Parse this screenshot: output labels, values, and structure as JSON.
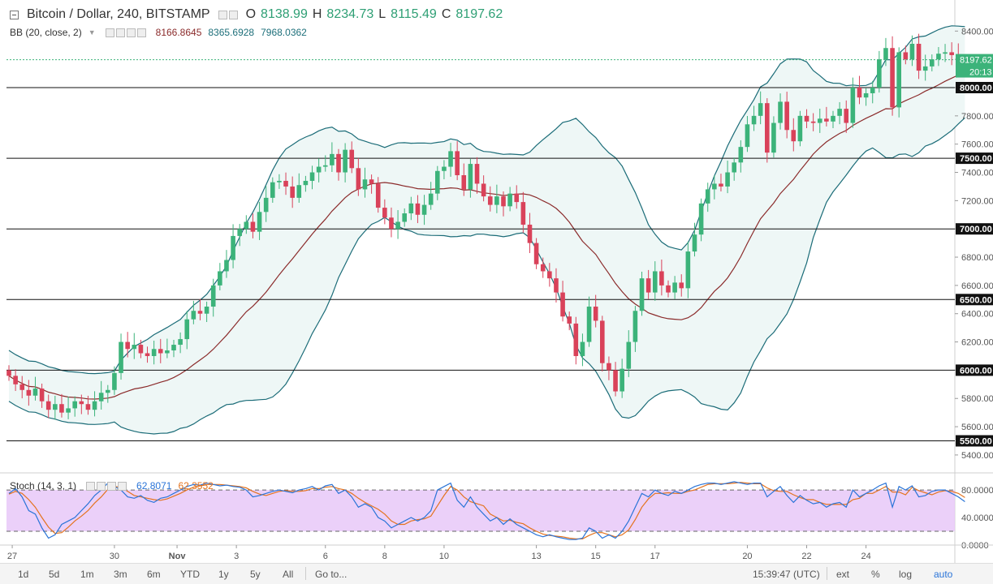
{
  "header": {
    "symbol": "Bitcoin / Dollar, 240, BITSTAMP",
    "open_label": "O",
    "open": "8138.99",
    "high_label": "H",
    "high": "8234.73",
    "low_label": "L",
    "low": "8115.49",
    "close_label": "C",
    "close": "8197.62"
  },
  "bb": {
    "label": "BB (20, close, 2)",
    "basis": "8166.8645",
    "upper": "8365.6928",
    "lower": "7968.0362"
  },
  "stoch": {
    "label": "Stoch (14, 3, 1)",
    "k": "62.8071",
    "d": "62.3552"
  },
  "price_label": {
    "value": "8197.62",
    "countdown": "20:13"
  },
  "bottom": {
    "ranges": [
      "1d",
      "5d",
      "1m",
      "3m",
      "6m",
      "YTD",
      "1y",
      "5y",
      "All"
    ],
    "goto": "Go to...",
    "time": "15:39:47 (UTC)",
    "ext": "ext",
    "pct": "%",
    "log": "log",
    "auto": "auto"
  },
  "colors": {
    "up": "#3cb37a",
    "down": "#d9425a",
    "basis": "#8b2b2b",
    "band": "#1b6c78",
    "band_fill": "#eef7f6",
    "stoch_k": "#2a74d8",
    "stoch_d": "#e4731e",
    "stoch_fill": "#e8c8f8"
  },
  "chart_data": {
    "type": "candlestick",
    "title": "Bitcoin / Dollar, 240, BITSTAMP",
    "ylim": [
      5350,
      8500
    ],
    "y_ticks": [
      5400,
      5600,
      5800,
      6000,
      6200,
      6400,
      6600,
      6800,
      7000,
      7200,
      7400,
      7600,
      7800,
      8000,
      8200,
      8400
    ],
    "y_tick_labels": [
      "5400.00",
      "5600.00",
      "5800.00",
      "6000.00",
      "6200.00",
      "6400.00",
      "6600.00",
      "6800.00",
      "7000.00",
      "7200.00",
      "7400.00",
      "7600.00",
      "7800.00",
      "8000.00",
      "8200.00",
      "8400.00"
    ],
    "horizontal_levels": [
      5500,
      6000,
      6500,
      7000,
      7500,
      8000
    ],
    "horizontal_level_labels": [
      "5500.00",
      "6000.00",
      "6500.00",
      "7000.00",
      "7500.00",
      "8000.00"
    ],
    "last_price": 8197.62,
    "x_label_positions": [
      0.5,
      16,
      25.5,
      34.5,
      48,
      57,
      66,
      80,
      89,
      98,
      112,
      121,
      130
    ],
    "x_labels": [
      "27",
      "30",
      "Nov",
      "3",
      "6",
      "8",
      "10",
      "13",
      "15",
      "17",
      "20",
      "22",
      "24"
    ],
    "stoch_ticks": [
      0,
      40,
      80
    ],
    "stoch_tick_labels": [
      "0.0000",
      "40.0000",
      "80.0000"
    ],
    "stoch_levels": [
      20,
      80
    ],
    "closes": [
      5960,
      5900,
      5860,
      5820,
      5870,
      5780,
      5720,
      5760,
      5700,
      5730,
      5780,
      5760,
      5720,
      5780,
      5840,
      5860,
      5980,
      6200,
      6150,
      6180,
      6120,
      6100,
      6150,
      6120,
      6140,
      6180,
      6220,
      6360,
      6420,
      6400,
      6450,
      6600,
      6700,
      6780,
      6950,
      7000,
      7050,
      6980,
      7120,
      7220,
      7330,
      7340,
      7300,
      7220,
      7310,
      7340,
      7400,
      7440,
      7450,
      7530,
      7400,
      7560,
      7430,
      7280,
      7350,
      7320,
      7150,
      7080,
      7000,
      7050,
      7110,
      7180,
      7100,
      7170,
      7250,
      7410,
      7440,
      7550,
      7380,
      7280,
      7460,
      7320,
      7230,
      7170,
      7230,
      7160,
      7250,
      7190,
      7030,
      6900,
      6750,
      6700,
      6650,
      6550,
      6380,
      6330,
      6100,
      6200,
      6450,
      6350,
      6050,
      6000,
      5850,
      6010,
      6200,
      6420,
      6650,
      6550,
      6700,
      6600,
      6550,
      6620,
      6580,
      6840,
      6960,
      7180,
      7280,
      7320,
      7300,
      7400,
      7470,
      7580,
      7740,
      7800,
      7890,
      7540,
      7750,
      7900,
      7700,
      7620,
      7800,
      7760,
      7750,
      7780,
      7760,
      7800,
      7850,
      7750,
      8000,
      7930,
      7960,
      8000,
      8200,
      8280,
      7860,
      8250,
      8200,
      8310,
      8120,
      8150,
      8200,
      8240,
      8250,
      8230,
      8200,
      8198
    ],
    "stoch_k": [
      75,
      82,
      70,
      50,
      45,
      25,
      10,
      15,
      30,
      35,
      40,
      50,
      60,
      72,
      80,
      90,
      85,
      80,
      70,
      68,
      72,
      65,
      62,
      68,
      70,
      75,
      80,
      85,
      88,
      87,
      90,
      88,
      86,
      87,
      85,
      84,
      80,
      70,
      72,
      75,
      78,
      80,
      78,
      76,
      80,
      82,
      85,
      80,
      86,
      88,
      75,
      80,
      70,
      55,
      60,
      55,
      40,
      35,
      25,
      30,
      35,
      40,
      35,
      40,
      50,
      80,
      85,
      90,
      65,
      55,
      70,
      55,
      45,
      35,
      40,
      30,
      38,
      30,
      25,
      20,
      15,
      12,
      15,
      12,
      10,
      8,
      8,
      10,
      25,
      20,
      10,
      15,
      10,
      20,
      35,
      55,
      75,
      70,
      80,
      75,
      72,
      78,
      75,
      80,
      85,
      88,
      90,
      90,
      88,
      90,
      92,
      90,
      88,
      90,
      90,
      70,
      78,
      85,
      72,
      62,
      72,
      65,
      60,
      62,
      55,
      60,
      62,
      55,
      80,
      70,
      75,
      80,
      86,
      90,
      55,
      85,
      80,
      86,
      70,
      72,
      78,
      80,
      80,
      75,
      70,
      63
    ],
    "stoch_d": [
      74,
      78,
      75,
      66,
      55,
      40,
      26,
      17,
      18,
      26,
      35,
      42,
      50,
      61,
      70,
      81,
      85,
      84,
      78,
      72,
      70,
      68,
      66,
      65,
      67,
      71,
      75,
      80,
      84,
      86,
      88,
      88,
      88,
      87,
      86,
      85,
      83,
      78,
      74,
      72,
      75,
      78,
      79,
      78,
      78,
      79,
      82,
      82,
      84,
      85,
      82,
      80,
      75,
      68,
      62,
      57,
      52,
      45,
      35,
      30,
      30,
      35,
      37,
      38,
      42,
      57,
      72,
      85,
      80,
      70,
      63,
      60,
      57,
      45,
      40,
      35,
      36,
      33,
      31,
      25,
      20,
      16,
      14,
      13,
      12,
      10,
      9,
      9,
      14,
      18,
      18,
      15,
      12,
      15,
      22,
      37,
      55,
      67,
      75,
      75,
      76,
      75,
      75,
      78,
      80,
      84,
      88,
      89,
      89,
      89,
      90,
      91,
      90,
      89,
      89,
      83,
      79,
      78,
      78,
      73,
      69,
      66,
      66,
      62,
      59,
      59,
      59,
      59,
      66,
      68,
      75,
      75,
      80,
      85,
      77,
      77,
      73,
      84,
      79,
      76,
      73,
      77,
      79,
      78,
      75,
      69
    ]
  }
}
